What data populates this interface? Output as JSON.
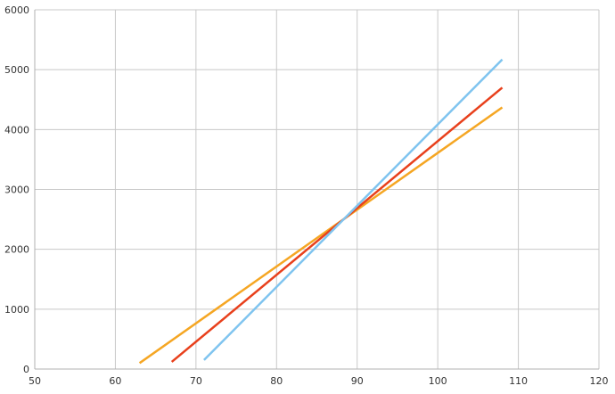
{
  "chart_data": {
    "type": "line",
    "title": "",
    "xlabel": "",
    "ylabel": "",
    "xlim": [
      50,
      120
    ],
    "ylim": [
      0,
      6000
    ],
    "x_ticks": [
      50,
      60,
      70,
      80,
      90,
      100,
      110,
      120
    ],
    "y_ticks": [
      0,
      1000,
      2000,
      3000,
      4000,
      5000,
      6000
    ],
    "grid": true,
    "legend": "none",
    "series": [
      {
        "color": "#f5a623",
        "x": [
          63,
          108
        ],
        "y": [
          100,
          4370
        ]
      },
      {
        "color": "#e8401c",
        "x": [
          67,
          108
        ],
        "y": [
          120,
          4700
        ]
      },
      {
        "color": "#7fc4ef",
        "x": [
          71,
          108
        ],
        "y": [
          150,
          5170
        ]
      }
    ]
  }
}
